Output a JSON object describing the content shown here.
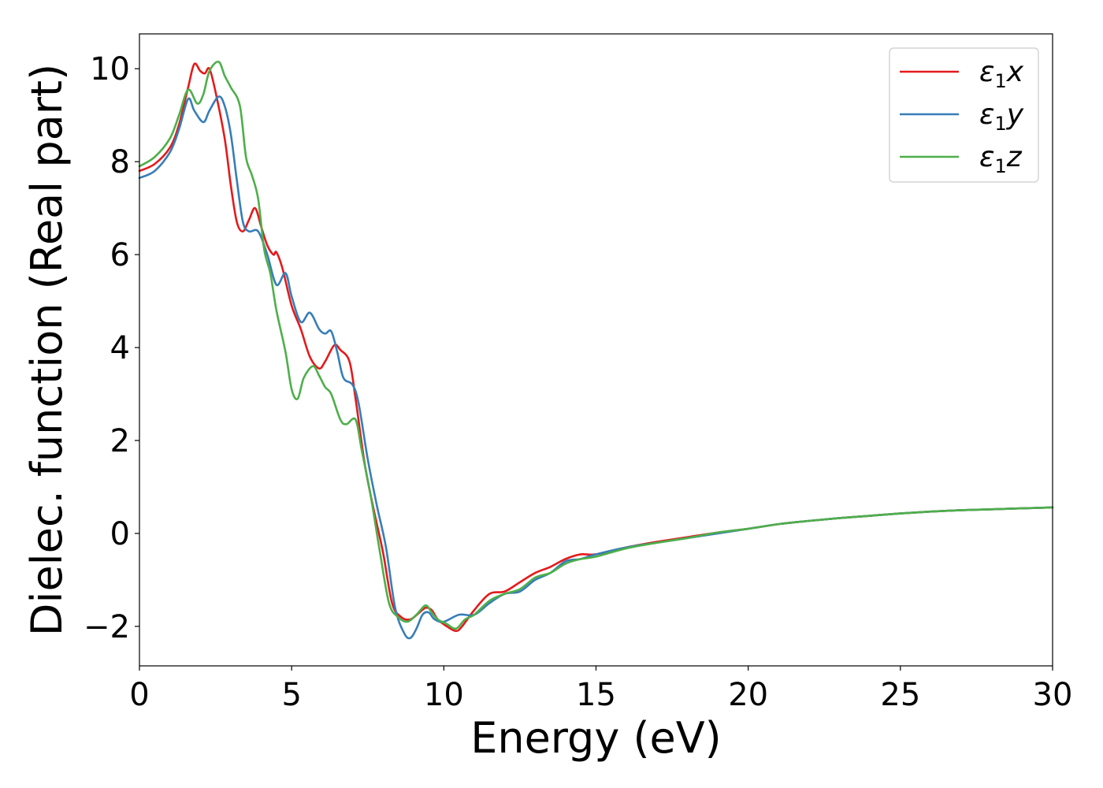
{
  "chart_data": {
    "type": "line",
    "title": "",
    "xlabel": "Energy (eV)",
    "ylabel": "Dielec. function (Real part)",
    "xlim": [
      0,
      30
    ],
    "ylim": [
      -2.85,
      10.75
    ],
    "xticks": [
      0,
      5,
      10,
      15,
      20,
      25,
      30
    ],
    "xtick_labels": [
      "0",
      "5",
      "10",
      "15",
      "20",
      "25",
      "30"
    ],
    "yticks": [
      -2,
      0,
      2,
      4,
      6,
      8,
      10
    ],
    "ytick_labels": [
      "−2",
      "0",
      "2",
      "4",
      "6",
      "8",
      "10"
    ],
    "grid": false,
    "legend_position": "top-right",
    "series": [
      {
        "name": "ε1x",
        "legend_symbol": "ε",
        "legend_sub": "1",
        "legend_var": "x",
        "color": "#e41a1c",
        "x": [
          0,
          0.5,
          1.0,
          1.3,
          1.6,
          1.8,
          2.0,
          2.15,
          2.3,
          2.5,
          2.8,
          3.0,
          3.2,
          3.4,
          3.6,
          3.8,
          4.0,
          4.2,
          4.4,
          4.5,
          4.7,
          5.0,
          5.3,
          5.6,
          5.9,
          6.1,
          6.4,
          6.6,
          6.9,
          7.1,
          7.4,
          7.7,
          8.0,
          8.3,
          8.6,
          8.9,
          9.2,
          9.4,
          9.6,
          9.8,
          10.1,
          10.4,
          10.6,
          11.0,
          11.5,
          12.0,
          12.5,
          13.0,
          13.5,
          14.0,
          14.5,
          15.0,
          16.0,
          17.0,
          18.0,
          19.0,
          20.0,
          21.0,
          22.0,
          23.0,
          24.0,
          25.0,
          26.0,
          27.0,
          28.0,
          29.0,
          30.0
        ],
        "values": [
          7.8,
          7.95,
          8.3,
          8.8,
          9.6,
          10.1,
          9.95,
          9.9,
          10.0,
          9.5,
          8.5,
          7.5,
          6.7,
          6.5,
          6.75,
          7.0,
          6.6,
          6.2,
          6.0,
          6.05,
          5.7,
          4.9,
          4.4,
          3.8,
          3.55,
          3.7,
          4.05,
          3.95,
          3.7,
          2.9,
          1.5,
          0.5,
          -0.4,
          -1.5,
          -1.8,
          -1.85,
          -1.7,
          -1.6,
          -1.65,
          -1.85,
          -2.0,
          -2.1,
          -2.0,
          -1.65,
          -1.3,
          -1.25,
          -1.05,
          -0.85,
          -0.72,
          -0.55,
          -0.45,
          -0.45,
          -0.3,
          -0.18,
          -0.08,
          0.02,
          0.1,
          0.2,
          0.27,
          0.33,
          0.38,
          0.43,
          0.47,
          0.5,
          0.52,
          0.54,
          0.56
        ]
      },
      {
        "name": "ε1y",
        "legend_symbol": "ε",
        "legend_sub": "1",
        "legend_var": "y",
        "color": "#377eb8",
        "x": [
          0,
          0.5,
          1.0,
          1.3,
          1.6,
          1.8,
          2.1,
          2.3,
          2.6,
          2.8,
          3.0,
          3.2,
          3.4,
          3.6,
          3.9,
          4.2,
          4.5,
          4.8,
          5.0,
          5.3,
          5.6,
          5.9,
          6.1,
          6.3,
          6.5,
          6.7,
          7.0,
          7.2,
          7.5,
          7.8,
          8.1,
          8.4,
          8.7,
          8.9,
          9.1,
          9.3,
          9.5,
          9.7,
          10.0,
          10.5,
          11.0,
          11.5,
          12.0,
          12.5,
          13.0,
          13.5,
          14.0,
          14.5,
          15.0,
          16.0,
          17.0,
          18.0,
          19.0,
          20.0,
          21.0,
          22.0,
          23.0,
          24.0,
          25.0,
          26.0,
          27.0,
          28.0,
          29.0,
          30.0
        ],
        "values": [
          7.65,
          7.8,
          8.2,
          8.7,
          9.35,
          9.1,
          8.85,
          9.1,
          9.4,
          9.2,
          8.6,
          7.6,
          6.7,
          6.5,
          6.5,
          6.0,
          5.35,
          5.6,
          5.1,
          4.55,
          4.75,
          4.4,
          4.3,
          4.35,
          3.9,
          3.35,
          3.2,
          2.8,
          1.6,
          0.6,
          -0.3,
          -1.6,
          -2.15,
          -2.25,
          -2.05,
          -1.75,
          -1.7,
          -1.85,
          -1.9,
          -1.75,
          -1.75,
          -1.5,
          -1.3,
          -1.25,
          -1.0,
          -0.85,
          -0.6,
          -0.55,
          -0.45,
          -0.3,
          -0.2,
          -0.1,
          0.0,
          0.1,
          0.2,
          0.27,
          0.33,
          0.38,
          0.43,
          0.47,
          0.5,
          0.52,
          0.54,
          0.56
        ]
      },
      {
        "name": "ε1z",
        "legend_symbol": "ε",
        "legend_sub": "1",
        "legend_var": "z",
        "color": "#4daf4a",
        "x": [
          0,
          0.5,
          1.0,
          1.3,
          1.6,
          1.9,
          2.1,
          2.3,
          2.6,
          2.8,
          3.0,
          3.3,
          3.5,
          3.7,
          3.9,
          4.1,
          4.3,
          4.5,
          4.8,
          5.0,
          5.2,
          5.4,
          5.7,
          5.9,
          6.1,
          6.3,
          6.6,
          6.8,
          7.1,
          7.3,
          7.6,
          7.9,
          8.2,
          8.5,
          8.8,
          9.1,
          9.4,
          9.6,
          9.8,
          10.1,
          10.4,
          10.7,
          11.0,
          11.5,
          12.0,
          12.5,
          13.0,
          13.5,
          14.0,
          14.5,
          15.0,
          16.0,
          17.0,
          18.0,
          19.0,
          20.0,
          21.0,
          22.0,
          23.0,
          24.0,
          25.0,
          26.0,
          27.0,
          28.0,
          29.0,
          30.0
        ],
        "values": [
          7.9,
          8.1,
          8.5,
          9.0,
          9.55,
          9.25,
          9.45,
          9.95,
          10.15,
          9.85,
          9.6,
          9.2,
          8.1,
          7.7,
          7.2,
          6.1,
          5.6,
          4.8,
          3.9,
          3.1,
          2.9,
          3.35,
          3.6,
          3.4,
          3.15,
          3.0,
          2.45,
          2.35,
          2.45,
          1.8,
          0.8,
          -0.4,
          -1.5,
          -1.8,
          -1.9,
          -1.75,
          -1.55,
          -1.7,
          -1.85,
          -1.95,
          -2.05,
          -1.85,
          -1.75,
          -1.45,
          -1.3,
          -1.2,
          -0.95,
          -0.85,
          -0.65,
          -0.55,
          -0.5,
          -0.32,
          -0.2,
          -0.1,
          0.02,
          0.1,
          0.2,
          0.27,
          0.33,
          0.38,
          0.43,
          0.47,
          0.5,
          0.52,
          0.54,
          0.56
        ]
      }
    ]
  }
}
